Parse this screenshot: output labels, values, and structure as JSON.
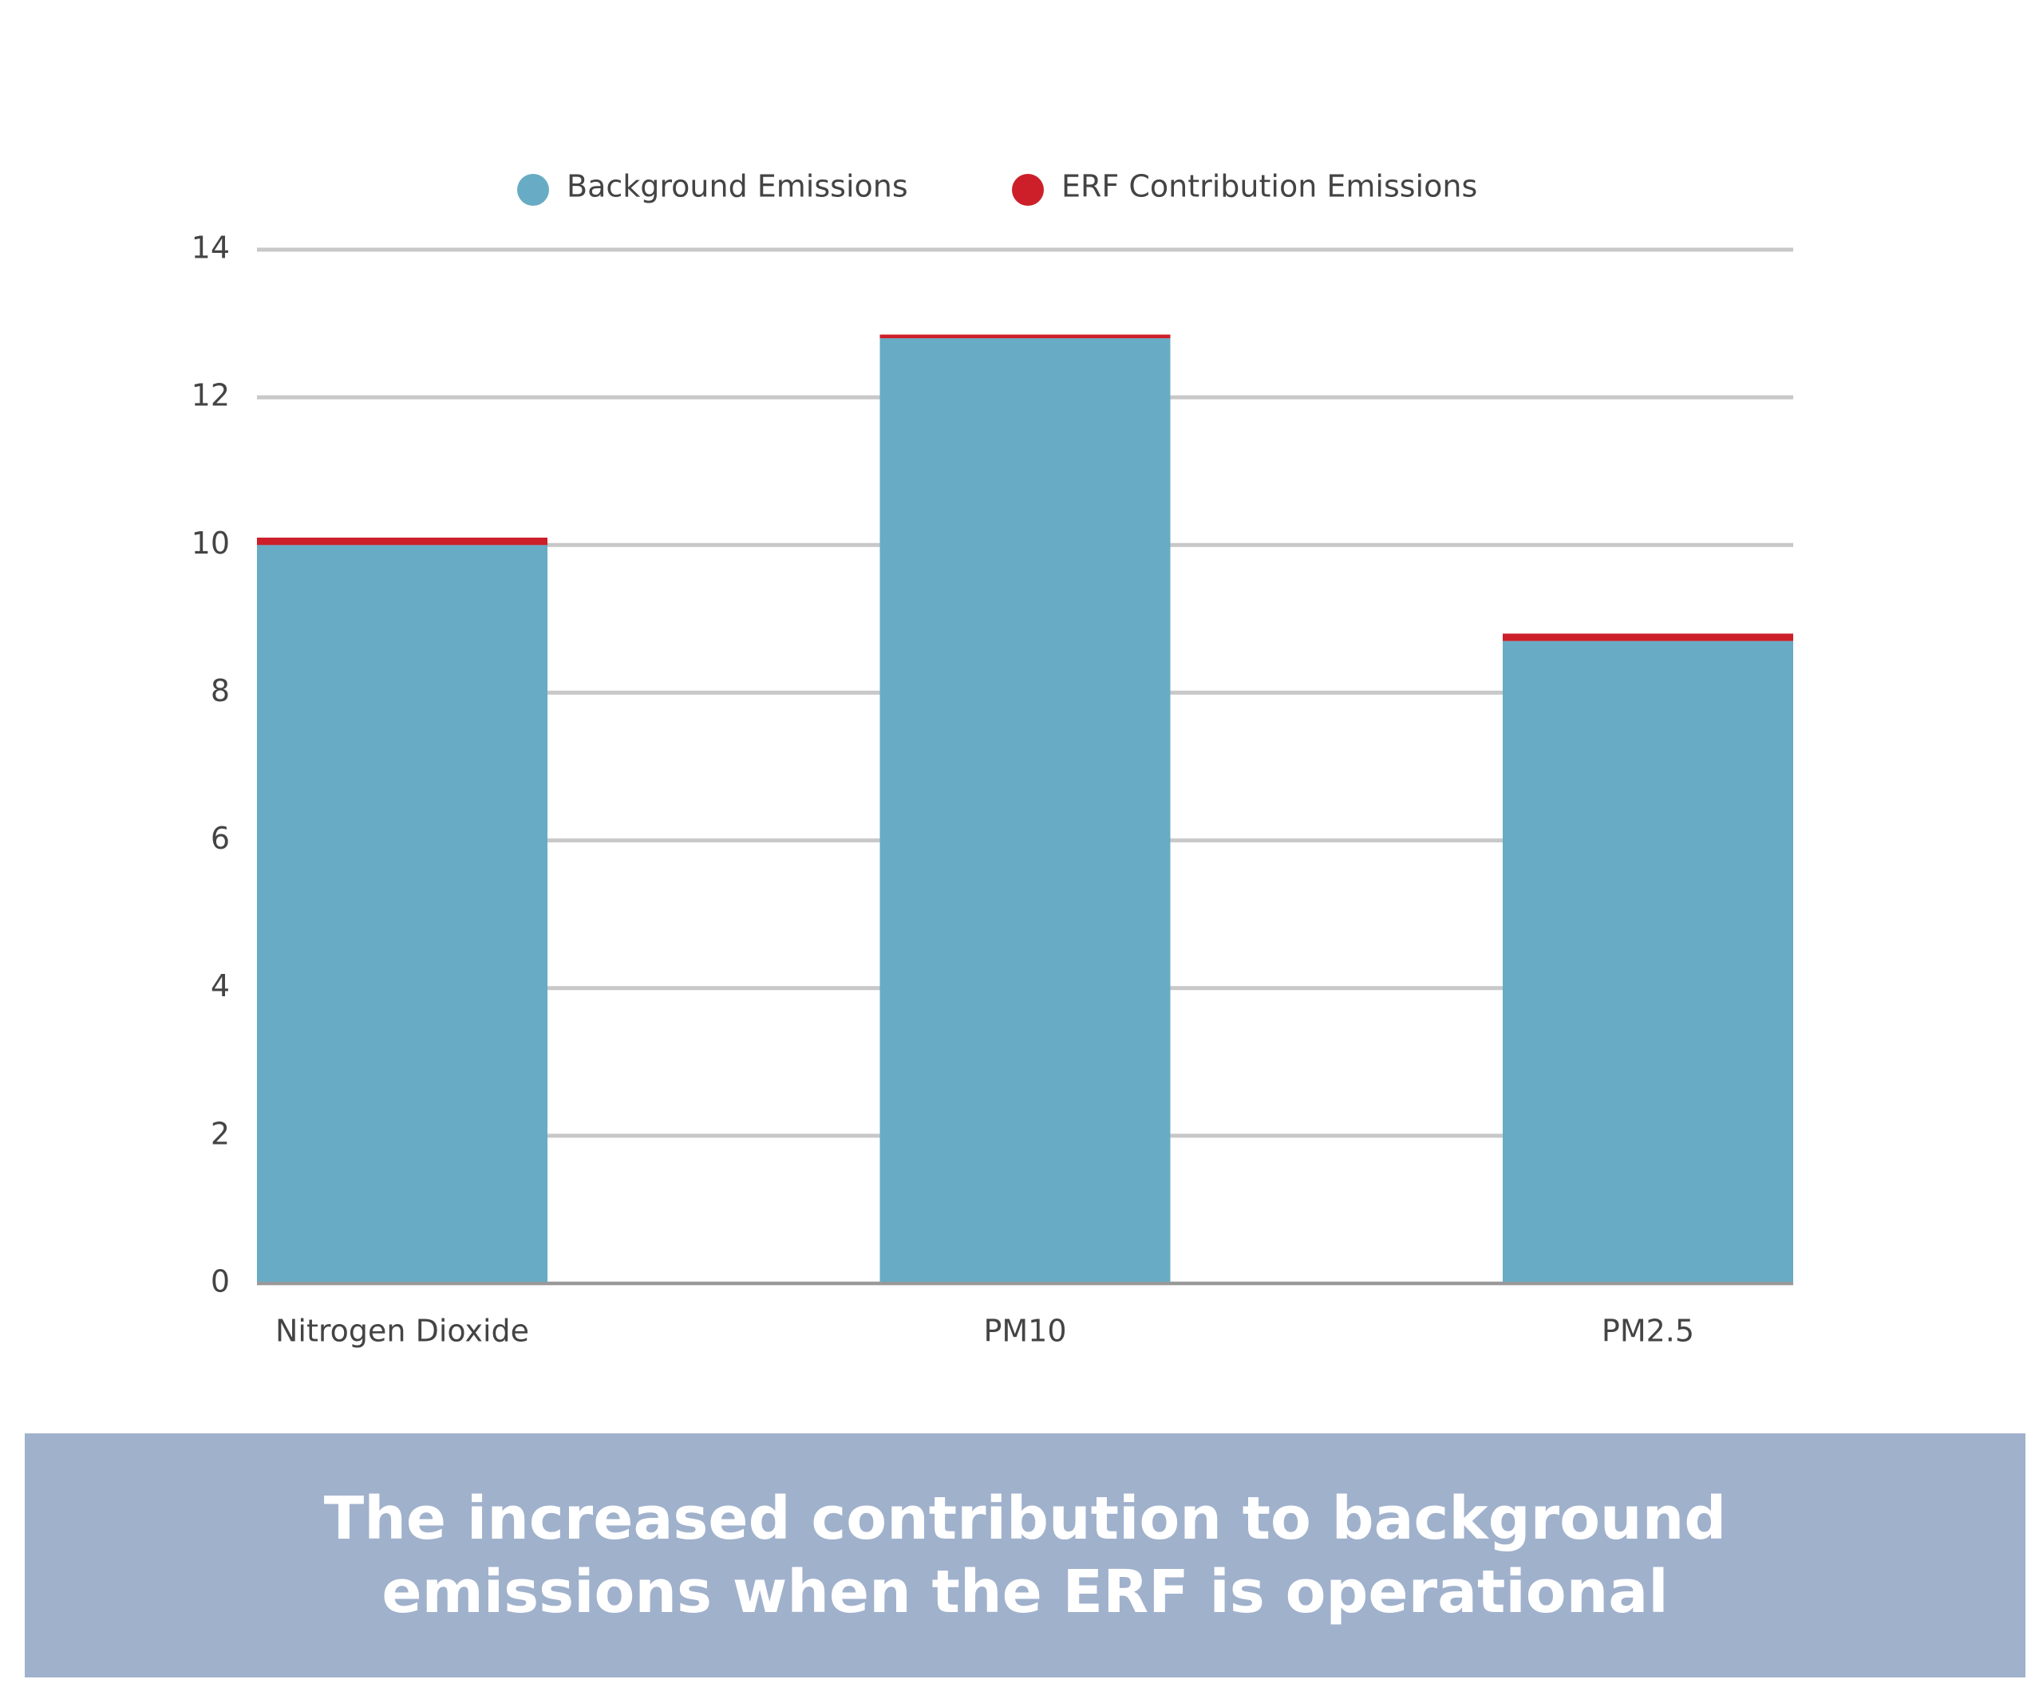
{
  "chart_data": {
    "type": "stacked_bar",
    "title": "The increased contribution to background emissions when the ERF is operational",
    "categories": [
      "Nitrogen Dioxide",
      "PM10",
      "PM2.5"
    ],
    "series": [
      {
        "name": "Background Emissions",
        "color": "#68abc4",
        "values": [
          10,
          12.8,
          8.7
        ]
      },
      {
        "name": "ERF Contribution Emissions",
        "color": "#cc1f2a",
        "values": [
          0.1,
          0.05,
          0.1
        ]
      }
    ],
    "ylim": [
      0,
      14
    ],
    "yticks": [
      0,
      2,
      4,
      6,
      8,
      10,
      12,
      14
    ],
    "grid": true,
    "legend": "top"
  }
}
